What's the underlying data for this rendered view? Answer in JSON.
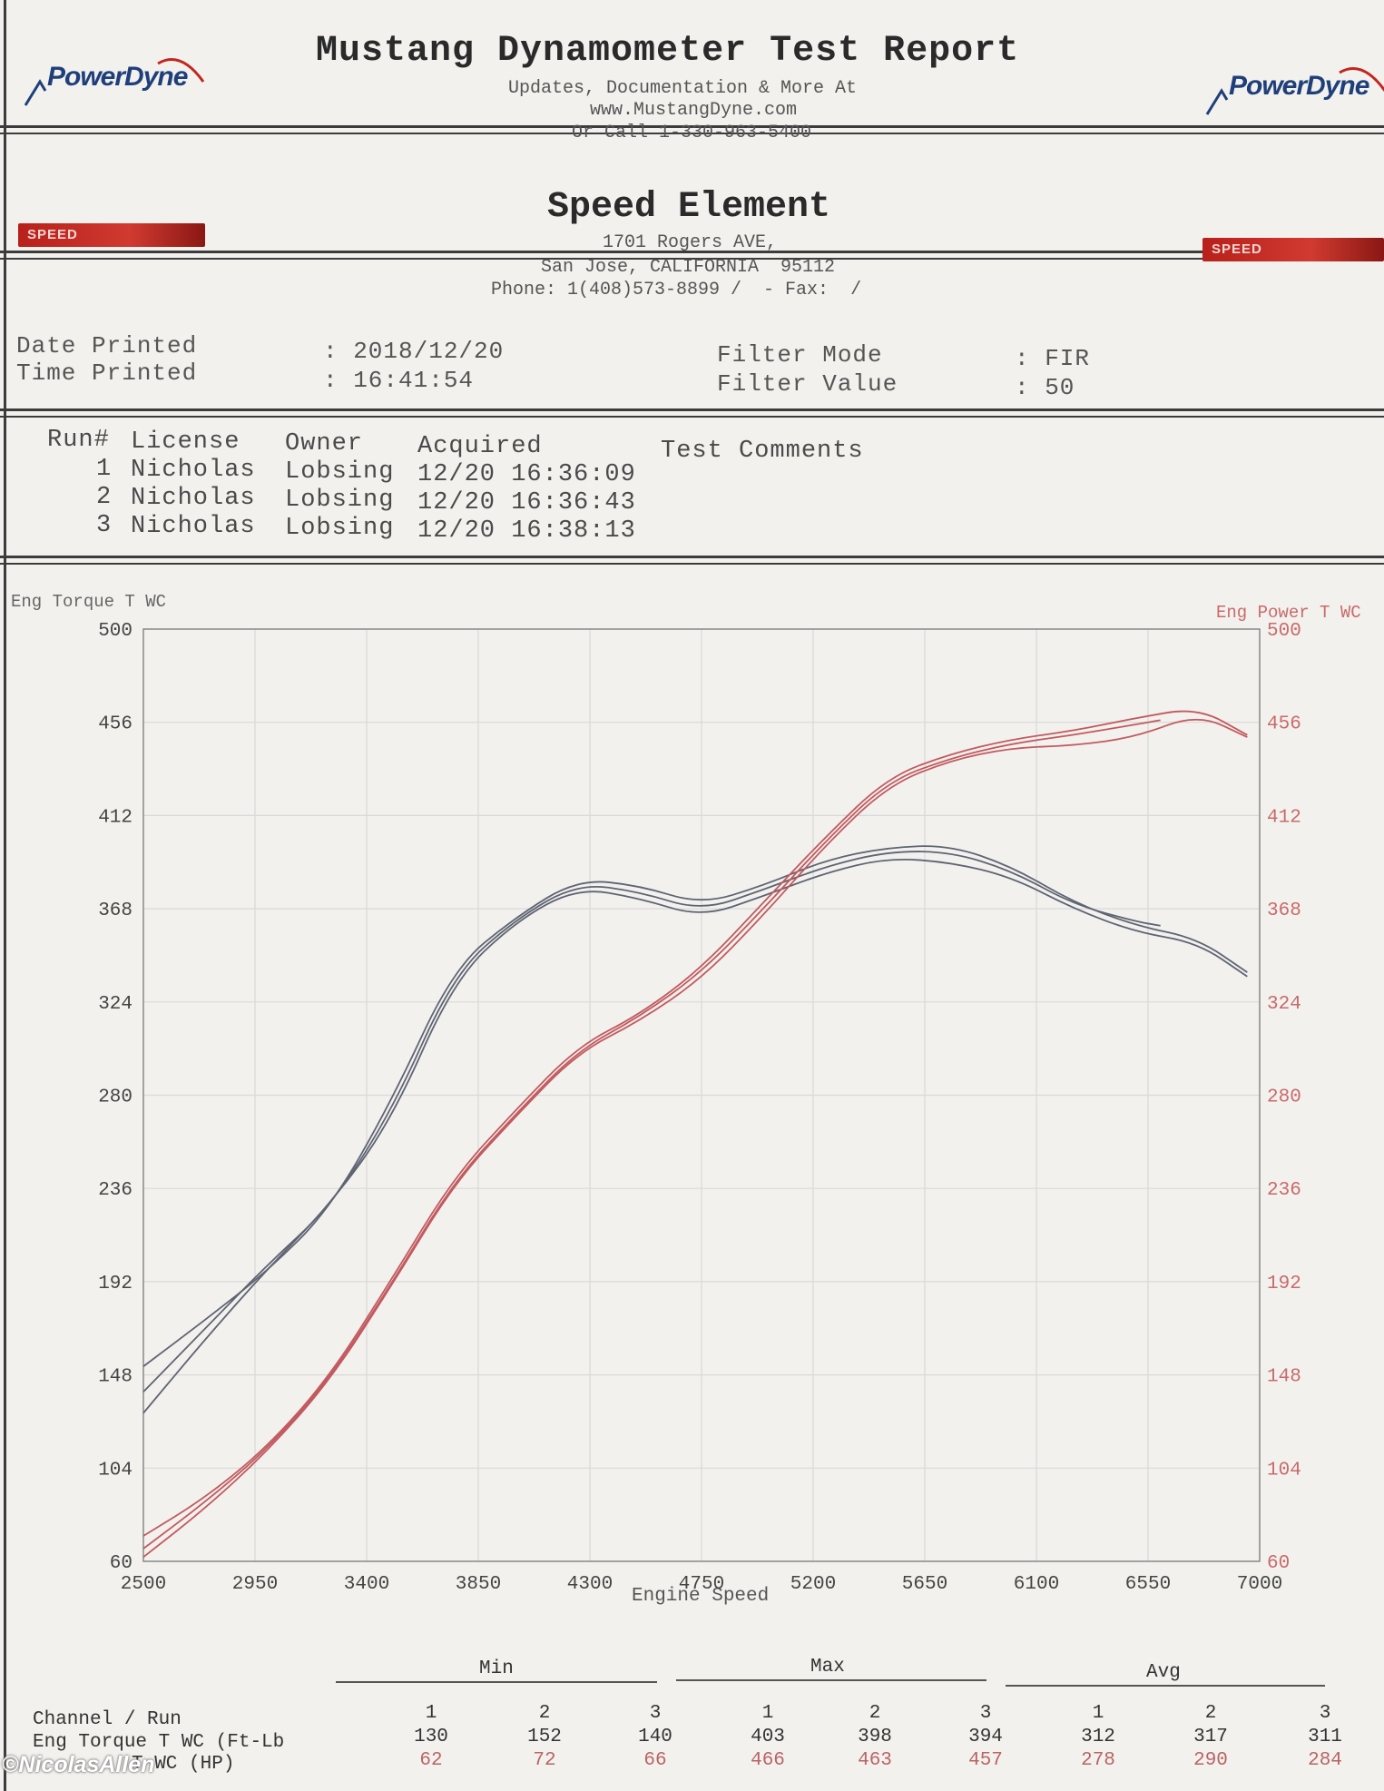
{
  "header": {
    "brand": "PowerDyne",
    "title": "Mustang Dynamometer Test Report",
    "line1": "Updates, Documentation & More At",
    "line2": "www.MustangDyne.com",
    "line3": "Or Call 1-330-963-5400"
  },
  "shop": {
    "name": "Speed Element",
    "badge": "SPEED",
    "address": "1701 Rogers AVE,",
    "city": "San Jose, CALIFORNIA  95112",
    "phone": "Phone: 1(408)573-8899 /  - Fax:  /"
  },
  "info": {
    "date_label": "Date Printed",
    "date_value": ": 2018/12/20",
    "time_label": "Time Printed",
    "time_value": ": 16:41:54",
    "filter_mode_label": "Filter Mode",
    "filter_mode_value": ": FIR",
    "filter_value_label": "Filter Value",
    "filter_value_value": ": 50"
  },
  "runs_table": {
    "headers": [
      "Run#",
      "License",
      "Owner",
      "Acquired",
      "Test Comments"
    ],
    "rows": [
      {
        "run": "1",
        "license": "Nicholas",
        "owner": "Lobsing",
        "acquired": "12/20 16:36:09"
      },
      {
        "run": "2",
        "license": "Nicholas",
        "owner": "Lobsing",
        "acquired": "12/20 16:36:43"
      },
      {
        "run": "3",
        "license": "Nicholas",
        "owner": "Lobsing",
        "acquired": "12/20 16:38:13"
      }
    ]
  },
  "chart_data": {
    "type": "line",
    "xlabel": "Engine Speed",
    "ylabel_left": "Eng Torque T WC",
    "ylabel_right": "Eng Power T WC",
    "xlim": [
      2500,
      7000
    ],
    "ylim": [
      60,
      500
    ],
    "x_ticks": [
      "2500",
      "2950",
      "3400",
      "3850",
      "4300",
      "4750",
      "5200",
      "5650",
      "6100",
      "6550",
      "7000"
    ],
    "y_ticks": [
      "60",
      "104",
      "148",
      "192",
      "236",
      "280",
      "324",
      "368",
      "412",
      "456",
      "500"
    ],
    "grid": true,
    "colors": {
      "torque": "#5e6472",
      "power": "#c25a5f"
    },
    "series": [
      {
        "name": "Eng Torque T WC",
        "run": "1",
        "x": [
          2500,
          2750,
          3000,
          3250,
          3500,
          3750,
          4000,
          4250,
          4500,
          4750,
          5000,
          5250,
          5500,
          5750,
          6000,
          6250,
          6500,
          6750,
          6950
        ],
        "y": [
          130,
          165,
          198,
          228,
          268,
          334,
          362,
          378,
          373,
          364,
          374,
          385,
          392,
          390,
          383,
          368,
          357,
          352,
          336
        ]
      },
      {
        "name": "Eng Torque T WC",
        "run": "2",
        "x": [
          2500,
          2750,
          3000,
          3250,
          3500,
          3750,
          4000,
          4250,
          4500,
          4750,
          5000,
          5250,
          5500,
          5750,
          6000,
          6250,
          6500,
          6750,
          6950
        ],
        "y": [
          152,
          174,
          197,
          226,
          277,
          340,
          364,
          382,
          379,
          370,
          379,
          391,
          397,
          398,
          388,
          371,
          360,
          354,
          338
        ]
      },
      {
        "name": "Eng Torque T WC",
        "run": "3",
        "x": [
          2500,
          2750,
          3000,
          3250,
          3500,
          3750,
          4000,
          4250,
          4500,
          4750,
          5000,
          5250,
          5500,
          5750,
          6000,
          6250,
          6500,
          6600
        ],
        "y": [
          140,
          170,
          200,
          227,
          272,
          337,
          363,
          380,
          376,
          367,
          377,
          388,
          395,
          395,
          386,
          370,
          362,
          360
        ]
      },
      {
        "name": "Eng Power T WC",
        "run": "1",
        "x": [
          2500,
          2750,
          3000,
          3250,
          3500,
          3750,
          4000,
          4250,
          4500,
          4750,
          5000,
          5250,
          5500,
          5750,
          6000,
          6250,
          6500,
          6750,
          6950
        ],
        "y": [
          62,
          85,
          112,
          145,
          190,
          238,
          270,
          300,
          315,
          335,
          365,
          398,
          426,
          438,
          444,
          445,
          449,
          460,
          449
        ]
      },
      {
        "name": "Eng Power T WC",
        "run": "2",
        "x": [
          2500,
          2750,
          3000,
          3250,
          3500,
          3750,
          4000,
          4250,
          4500,
          4750,
          5000,
          5250,
          5500,
          5750,
          6000,
          6250,
          6500,
          6750,
          6950
        ],
        "y": [
          72,
          90,
          114,
          147,
          193,
          241,
          273,
          303,
          318,
          340,
          371,
          402,
          430,
          441,
          448,
          452,
          458,
          463,
          450
        ]
      },
      {
        "name": "Eng Power T WC",
        "run": "3",
        "x": [
          2500,
          2750,
          3000,
          3250,
          3500,
          3750,
          4000,
          4250,
          4500,
          4750,
          5000,
          5250,
          5500,
          5750,
          6000,
          6250,
          6500,
          6600
        ],
        "y": [
          66,
          88,
          113,
          146,
          191,
          239,
          271,
          301,
          317,
          338,
          368,
          400,
          428,
          439,
          446,
          450,
          455,
          457
        ]
      }
    ]
  },
  "stats": {
    "groups": [
      "Min",
      "Max",
      "Avg"
    ],
    "channel_run_label": "Channel / Run",
    "run_numbers": [
      "1",
      "2",
      "3",
      "1",
      "2",
      "3",
      "1",
      "2",
      "3"
    ],
    "torque_label": "Eng Torque T WC (Ft-Lb",
    "torque_values": [
      "130",
      "152",
      "140",
      "403",
      "398",
      "394",
      "312",
      "317",
      "311"
    ],
    "power_label": "T WC (HP)",
    "power_values": [
      "62",
      "72",
      "66",
      "466",
      "463",
      "457",
      "278",
      "290",
      "284"
    ]
  },
  "watermark": "©NicolasAllen"
}
